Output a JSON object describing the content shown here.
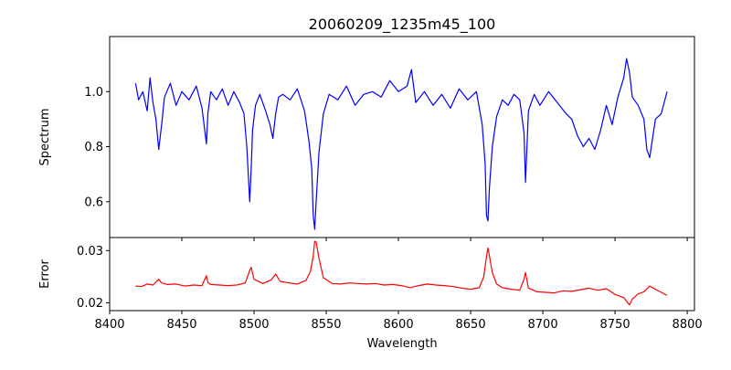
{
  "chart_data": [
    {
      "type": "line",
      "panel": "spectrum",
      "title": "20060209_1235m45_100",
      "xlabel": "",
      "ylabel": "Spectrum",
      "xlim": [
        8400,
        8805
      ],
      "ylim": [
        0.47,
        1.2
      ],
      "xticks": [
        8400,
        8450,
        8500,
        8550,
        8600,
        8650,
        8700,
        8750,
        8800
      ],
      "yticks": [
        0.6,
        0.8,
        1.0
      ],
      "ytick_labels": [
        "0.6",
        "0.8",
        "1.0"
      ],
      "series": [
        {
          "name": "spectrum",
          "color": "#0000ff",
          "x": [
            8418,
            8420,
            8423,
            8426,
            8428,
            8430,
            8432,
            8434,
            8436,
            8438,
            8442,
            8446,
            8450,
            8455,
            8460,
            8464,
            8467,
            8468,
            8470,
            8474,
            8478,
            8482,
            8486,
            8490,
            8493,
            8495,
            8497,
            8498,
            8499,
            8501,
            8504,
            8508,
            8511,
            8513,
            8515,
            8517,
            8520,
            8525,
            8530,
            8535,
            8538,
            8540,
            8541,
            8542,
            8543,
            8545,
            8548,
            8552,
            8558,
            8564,
            8570,
            8576,
            8582,
            8588,
            8594,
            8600,
            8606,
            8609,
            8612,
            8618,
            8624,
            8630,
            8636,
            8642,
            8648,
            8654,
            8658,
            8660,
            8661,
            8662,
            8663,
            8665,
            8668,
            8672,
            8676,
            8680,
            8684,
            8687,
            8688,
            8690,
            8694,
            8698,
            8704,
            8710,
            8716,
            8720,
            8724,
            8728,
            8732,
            8736,
            8740,
            8744,
            8748,
            8752,
            8756,
            8758,
            8760,
            8762,
            8766,
            8770,
            8772,
            8774,
            8778,
            8782,
            8786
          ],
          "y": [
            1.03,
            0.97,
            1.0,
            0.93,
            1.05,
            0.96,
            0.9,
            0.79,
            0.88,
            0.98,
            1.03,
            0.95,
            1.0,
            0.97,
            1.02,
            0.94,
            0.81,
            0.92,
            1.0,
            0.97,
            1.01,
            0.95,
            1.0,
            0.96,
            0.92,
            0.8,
            0.6,
            0.72,
            0.86,
            0.95,
            0.99,
            0.93,
            0.88,
            0.83,
            0.92,
            0.98,
            0.99,
            0.97,
            1.01,
            0.93,
            0.82,
            0.72,
            0.55,
            0.5,
            0.6,
            0.78,
            0.92,
            0.99,
            0.97,
            1.02,
            0.95,
            0.99,
            1.0,
            0.98,
            1.04,
            1.0,
            1.02,
            1.08,
            0.96,
            1.0,
            0.95,
            0.99,
            0.94,
            1.01,
            0.97,
            1.0,
            0.88,
            0.74,
            0.55,
            0.53,
            0.65,
            0.8,
            0.91,
            0.97,
            0.95,
            0.99,
            0.97,
            0.85,
            0.67,
            0.93,
            0.99,
            0.95,
            1.0,
            0.96,
            0.92,
            0.9,
            0.84,
            0.8,
            0.83,
            0.79,
            0.86,
            0.95,
            0.88,
            0.98,
            1.05,
            1.12,
            1.07,
            0.98,
            0.95,
            0.9,
            0.79,
            0.76,
            0.9,
            0.92,
            1.0
          ]
        }
      ]
    },
    {
      "type": "line",
      "panel": "error",
      "title": "",
      "xlabel": "Wavelength",
      "ylabel": "Error",
      "xlim": [
        8400,
        8805
      ],
      "ylim": [
        0.0185,
        0.0325
      ],
      "xticks": [
        8400,
        8450,
        8500,
        8550,
        8600,
        8650,
        8700,
        8750,
        8800
      ],
      "xtick_labels": [
        "8400",
        "8450",
        "8500",
        "8550",
        "8600",
        "8650",
        "8700",
        "8750",
        "8800"
      ],
      "yticks": [
        0.02,
        0.03
      ],
      "ytick_labels": [
        "0.02",
        "0.03"
      ],
      "series": [
        {
          "name": "error",
          "color": "#ff0000",
          "x": [
            8418,
            8422,
            8426,
            8430,
            8434,
            8436,
            8440,
            8446,
            8452,
            8458,
            8464,
            8467,
            8468,
            8470,
            8476,
            8482,
            8488,
            8494,
            8497,
            8498,
            8500,
            8506,
            8512,
            8515,
            8518,
            8524,
            8530,
            8536,
            8539,
            8541,
            8542,
            8543,
            8545,
            8548,
            8554,
            8560,
            8566,
            8572,
            8578,
            8584,
            8590,
            8596,
            8602,
            8608,
            8614,
            8620,
            8626,
            8632,
            8638,
            8644,
            8650,
            8656,
            8659,
            8661,
            8662,
            8663,
            8665,
            8668,
            8672,
            8678,
            8684,
            8687,
            8688,
            8690,
            8696,
            8702,
            8708,
            8714,
            8720,
            8726,
            8732,
            8738,
            8744,
            8750,
            8756,
            8760,
            8762,
            8766,
            8770,
            8774,
            8778,
            8782,
            8786
          ],
          "y": [
            0.0232,
            0.0231,
            0.0236,
            0.0234,
            0.0245,
            0.0238,
            0.0235,
            0.0236,
            0.0232,
            0.0234,
            0.0233,
            0.0252,
            0.0239,
            0.0235,
            0.0234,
            0.0233,
            0.0234,
            0.0238,
            0.0262,
            0.0268,
            0.0245,
            0.0237,
            0.0244,
            0.0255,
            0.0241,
            0.0238,
            0.0236,
            0.0243,
            0.026,
            0.029,
            0.0318,
            0.0316,
            0.0285,
            0.0248,
            0.0237,
            0.0236,
            0.0238,
            0.0237,
            0.0236,
            0.0237,
            0.0234,
            0.0235,
            0.0233,
            0.0229,
            0.0233,
            0.0236,
            0.0234,
            0.0233,
            0.0231,
            0.0228,
            0.0226,
            0.0229,
            0.0249,
            0.0288,
            0.0305,
            0.029,
            0.0258,
            0.0236,
            0.0229,
            0.0226,
            0.0224,
            0.0245,
            0.0258,
            0.0228,
            0.0221,
            0.022,
            0.0219,
            0.0223,
            0.0222,
            0.0225,
            0.0228,
            0.0224,
            0.0227,
            0.0216,
            0.021,
            0.0196,
            0.0207,
            0.0217,
            0.0221,
            0.0232,
            0.0226,
            0.022,
            0.0214
          ]
        }
      ]
    }
  ]
}
